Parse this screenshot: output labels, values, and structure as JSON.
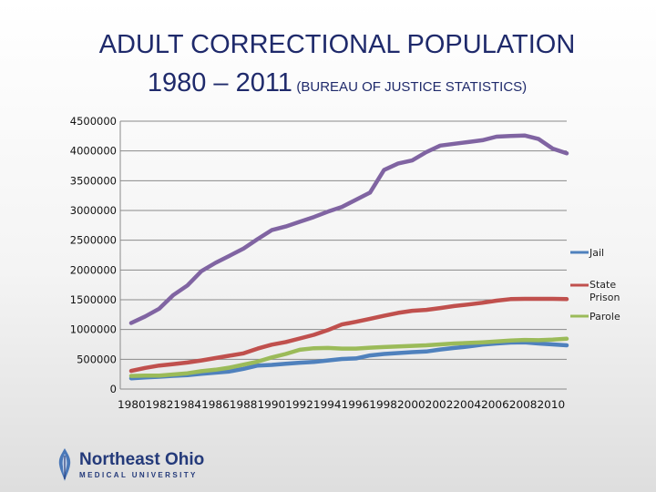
{
  "title": {
    "line1": "ADULT CORRECTIONAL POPULATION",
    "line2": "1980 – 2011",
    "source": "(BUREAU OF JUSTICE STATISTICS)"
  },
  "logo": {
    "line1": "Northeast Ohio",
    "line2": "MEDICAL UNIVERSITY"
  },
  "chart_data": {
    "type": "line",
    "title": "ADULT CORRECTIONAL POPULATION 1980 – 2011 (BUREAU OF JUSTICE STATISTICS)",
    "xlabel": "",
    "ylabel": "",
    "ylim": [
      0,
      4500000
    ],
    "yticks": [
      0,
      500000,
      1000000,
      1500000,
      2000000,
      2500000,
      3000000,
      3500000,
      4000000,
      4500000
    ],
    "x": [
      1980,
      1981,
      1982,
      1983,
      1984,
      1985,
      1986,
      1987,
      1988,
      1989,
      1990,
      1991,
      1992,
      1993,
      1994,
      1995,
      1996,
      1997,
      1998,
      1999,
      2000,
      2001,
      2002,
      2003,
      2004,
      2005,
      2006,
      2007,
      2008,
      2009,
      2010,
      2011
    ],
    "xticks": [
      "1980",
      "1982",
      "1984",
      "1986",
      "1988",
      "1990",
      "1992",
      "1994",
      "1996",
      "1998",
      "2000",
      "2002",
      "2004",
      "2006",
      "2008",
      "2010"
    ],
    "grid": true,
    "legend_position": "right",
    "series": [
      {
        "name": "Jail",
        "color": "#4f81bd",
        "values": [
          180000,
          195000,
          207000,
          222000,
          233000,
          255000,
          275000,
          295000,
          340000,
          395000,
          405000,
          425000,
          442000,
          455000,
          480000,
          505000,
          515000,
          565000,
          590000,
          605000,
          620000,
          630000,
          665000,
          690000,
          715000,
          745000,
          765000,
          780000,
          785000,
          765000,
          750000,
          735000
        ]
      },
      {
        "name": "State Prison",
        "color": "#c0504d",
        "values": [
          305000,
          355000,
          395000,
          420000,
          445000,
          480000,
          520000,
          560000,
          600000,
          680000,
          745000,
          790000,
          850000,
          910000,
          990000,
          1085000,
          1130000,
          1180000,
          1230000,
          1280000,
          1315000,
          1330000,
          1360000,
          1395000,
          1420000,
          1450000,
          1485000,
          1510000,
          1515000,
          1515000,
          1515000,
          1510000
        ]
      },
      {
        "name": "Parole",
        "color": "#9bbb59",
        "values": [
          220000,
          225000,
          225000,
          245000,
          265000,
          300000,
          325000,
          360000,
          410000,
          460000,
          531000,
          590000,
          660000,
          685000,
          690000,
          680000,
          680000,
          695000,
          705000,
          715000,
          725000,
          735000,
          750000,
          765000,
          775000,
          785000,
          800000,
          815000,
          825000,
          820000,
          830000,
          845000
        ]
      },
      {
        "name": "",
        "color": "#8064a2",
        "values": [
          1110000,
          1220000,
          1350000,
          1580000,
          1740000,
          1980000,
          2120000,
          2240000,
          2360000,
          2520000,
          2670000,
          2730000,
          2810000,
          2890000,
          2980000,
          3060000,
          3180000,
          3300000,
          3680000,
          3790000,
          3840000,
          3980000,
          4090000,
          4120000,
          4150000,
          4180000,
          4240000,
          4250000,
          4260000,
          4200000,
          4040000,
          3960000
        ]
      }
    ]
  }
}
